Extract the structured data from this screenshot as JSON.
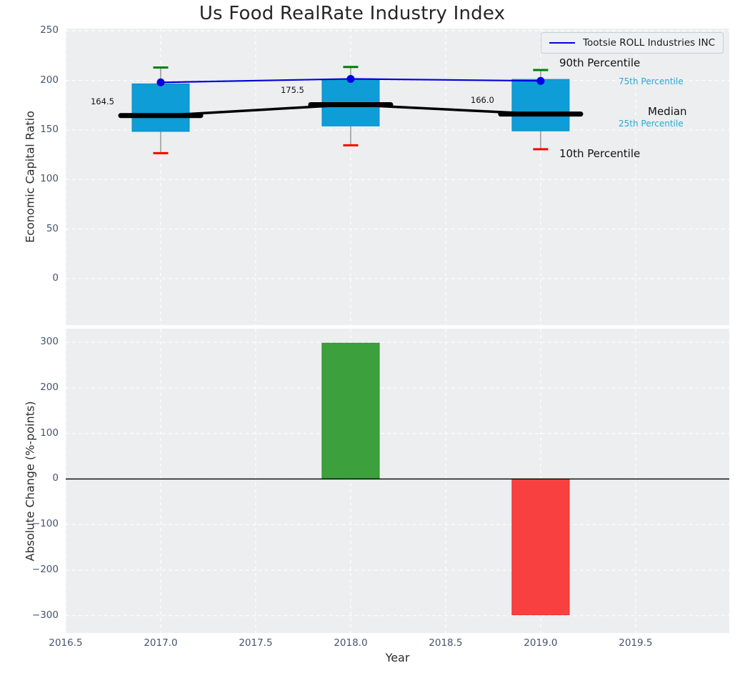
{
  "title": "Us Food RealRate Industry Index",
  "legend": {
    "label": "Tootsie ROLL Industries INC",
    "line_color": "#0000e0"
  },
  "annotations": {
    "p90": "90th Percentile",
    "p75": "75th Percentile",
    "median": "Median",
    "p25": "25th Percentile",
    "p10": "10th Percentile"
  },
  "colors": {
    "axes_background": "#eceeef",
    "grid": "#ffffff",
    "box_fill": "#0e9dd6",
    "box_edge": "#0b8fc4",
    "median": "#000000",
    "whisker": "#8a8a8a",
    "cap_top": "#007f00",
    "cap_bottom": "#ff0000",
    "company_line": "#0000e0",
    "bar_up": "#3ca03c",
    "bar_up_edge": "#349434",
    "bar_down": "#f94040",
    "bar_down_edge": "#e83636",
    "tick_label": "#44546e",
    "text": "#2b2b2b",
    "percentile_cyan": "#2aa7d6"
  },
  "chart_data": [
    {
      "type": "box",
      "title": "Us Food RealRate Industry Index",
      "xlabel": "Year",
      "ylabel": "Economic Capital Ratio",
      "x": [
        2017,
        2018,
        2019
      ],
      "series": [
        {
          "name": "90th Percentile",
          "values": [
            213,
            213.5,
            210.5
          ]
        },
        {
          "name": "75th Percentile",
          "values": [
            196.5,
            201,
            201
          ]
        },
        {
          "name": "Median",
          "values": [
            164.5,
            175.5,
            166.0
          ]
        },
        {
          "name": "25th Percentile",
          "values": [
            148.5,
            154,
            149
          ]
        },
        {
          "name": "10th Percentile",
          "values": [
            126.5,
            134.5,
            130.5
          ]
        },
        {
          "name": "Tootsie ROLL Industries INC",
          "values": [
            198,
            201.5,
            199.5
          ]
        }
      ],
      "median_labels": [
        "164.5",
        "175.5",
        "166.0"
      ],
      "xlim": [
        2016.5,
        2019.993
      ],
      "ylim": [
        -47,
        252.3
      ],
      "yticks": [
        0,
        50,
        100,
        150,
        200,
        250
      ],
      "ytick_labels": [
        "0",
        "50",
        "100",
        "150",
        "200",
        "250"
      ],
      "xticks": [
        2016.5,
        2017.0,
        2017.5,
        2018.0,
        2018.5,
        2019.0,
        2019.5
      ],
      "xtick_labels": [
        "2016.5",
        "2017.0",
        "2017.5",
        "2018.0",
        "2018.5",
        "2019.0",
        "2019.5"
      ],
      "grid": true,
      "legend_position": "upper right"
    },
    {
      "type": "bar",
      "xlabel": "Year",
      "ylabel": "Absolute Change (%-points)",
      "x": [
        2018,
        2019
      ],
      "values": [
        298,
        -298
      ],
      "bar_colors": [
        "#3ca03c",
        "#f94040"
      ],
      "xlim": [
        2016.5,
        2019.993
      ],
      "ylim": [
        -338,
        330
      ],
      "yticks": [
        -300,
        -200,
        -100,
        0,
        100,
        200,
        300
      ],
      "ytick_labels": [
        "-300",
        "-200",
        "-100",
        "0",
        "100",
        "200",
        "300"
      ],
      "grid": true,
      "zero_line": 0
    }
  ]
}
